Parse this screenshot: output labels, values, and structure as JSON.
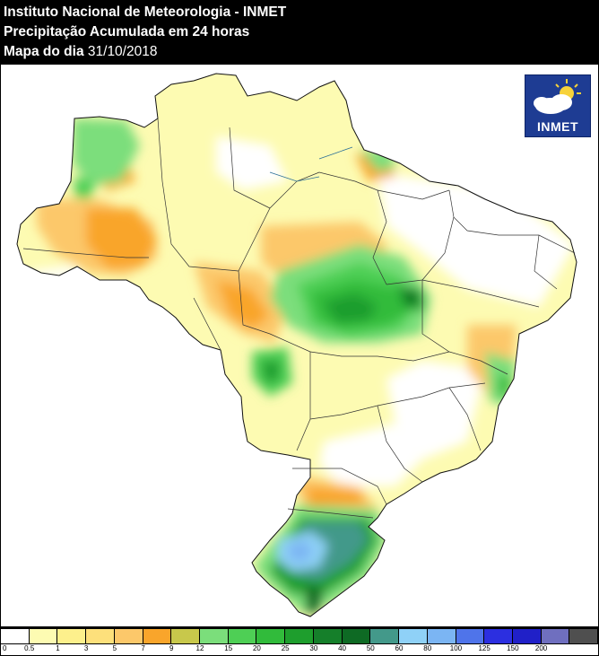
{
  "header": {
    "line1": "Instituto Nacional de Meteorologia - INMET",
    "line2": "Precipitação Acumulada em 24 horas",
    "line3_prefix": "Mapa do dia",
    "date": "31/10/2018"
  },
  "logo": {
    "text": "INMET",
    "icon": "sun-cloud-icon"
  },
  "legend": {
    "colors": [
      "#ffffff",
      "#fdfbb2",
      "#fdf08c",
      "#fde07b",
      "#fcc86a",
      "#f9a52b",
      "#c8c84b",
      "#7bde7b",
      "#4ecf55",
      "#31bb3b",
      "#1e9e2d",
      "#157f2a",
      "#0e6a24",
      "#43998a",
      "#8fd1f7",
      "#7bb5f3",
      "#4f74ea",
      "#2c2fe0",
      "#2020c8",
      "#6f6fbf",
      "#4f4f4f"
    ],
    "labels": [
      "0",
      "0.5",
      "1",
      "3",
      "5",
      "7",
      "9",
      "12",
      "15",
      "20",
      "25",
      "30",
      "40",
      "50",
      "60",
      "80",
      "100",
      "125",
      "150",
      "200"
    ]
  }
}
